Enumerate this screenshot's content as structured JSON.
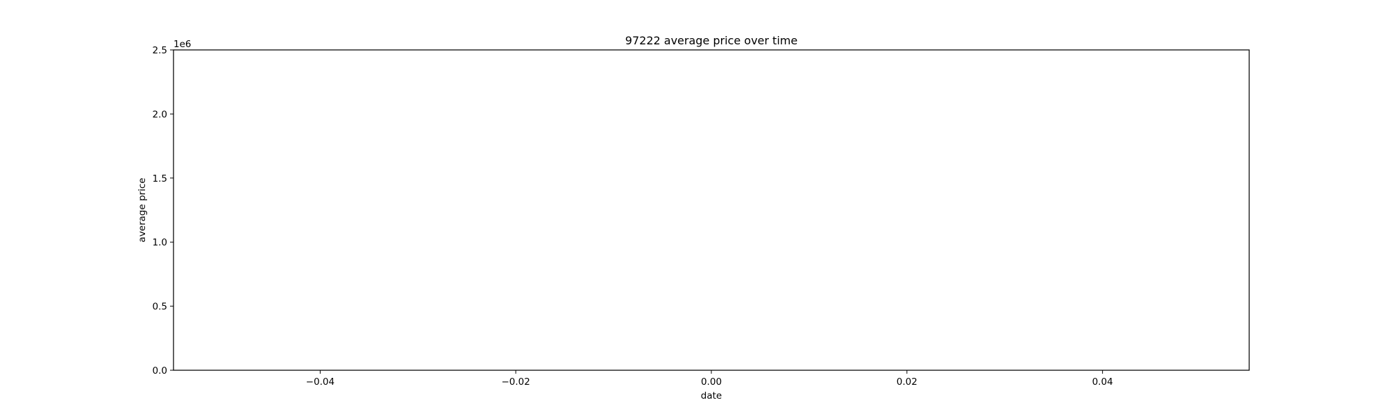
{
  "chart_data": {
    "type": "line",
    "title": "97222 average price over time",
    "xlabel": "date",
    "ylabel": "average price",
    "y_offset_label": "1e6",
    "xlim": [
      -0.055,
      0.055
    ],
    "ylim": [
      0,
      2500000
    ],
    "x_ticks": [
      -0.04,
      -0.02,
      0.0,
      0.02,
      0.04
    ],
    "x_tick_labels": [
      "−0.04",
      "−0.02",
      "0.00",
      "0.02",
      "0.04"
    ],
    "y_ticks": [
      0,
      500000,
      1000000,
      1500000,
      2000000,
      2500000
    ],
    "y_tick_labels": [
      "0.0",
      "0.5",
      "1.0",
      "1.5",
      "2.0",
      "2.5"
    ],
    "grid": false,
    "series": [
      {
        "x": [],
        "values": []
      }
    ]
  }
}
